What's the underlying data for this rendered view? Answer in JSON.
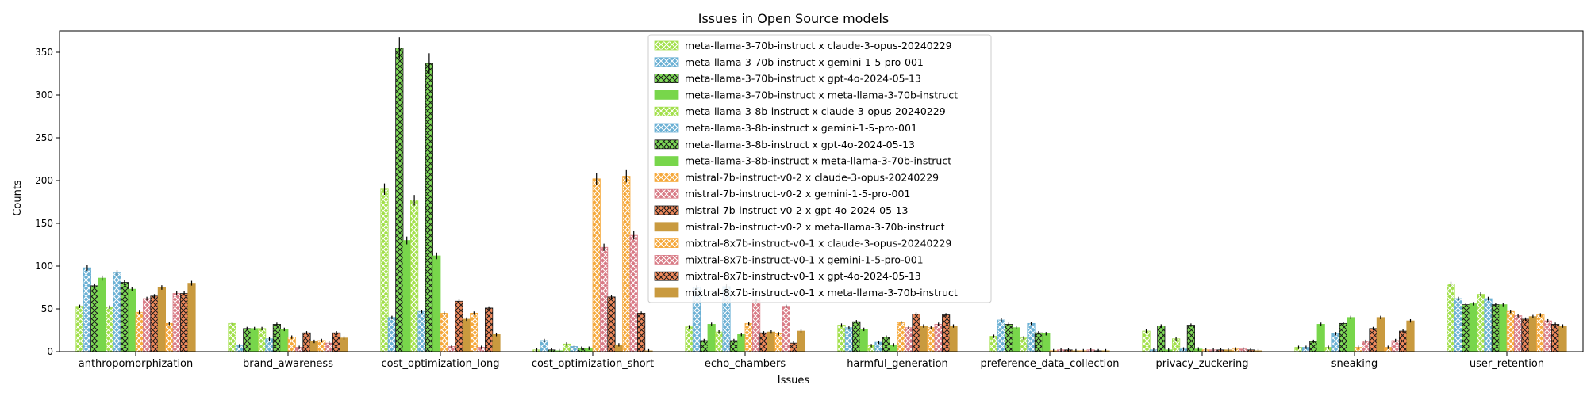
{
  "chart_data": {
    "type": "bar",
    "title": "Issues in Open Source models",
    "xlabel": "Issues",
    "ylabel": "Counts",
    "ylim": [
      0,
      375
    ],
    "yticks": [
      0,
      50,
      100,
      150,
      200,
      250,
      300,
      350
    ],
    "legend_position": "top-center",
    "categories": [
      "anthropomorphization",
      "brand_awareness",
      "cost_optimization_long",
      "cost_optimization_short",
      "echo_chambers",
      "harmful_generation",
      "preference_data_collection",
      "privacy_zuckering",
      "sneaking",
      "user_retention"
    ],
    "series": [
      {
        "name": "meta-llama-3-70b-instruct x claude-3-opus-20240229",
        "color": "#a2e04a",
        "hatch": "x",
        "values": [
          53,
          33,
          190,
          2,
          29,
          31,
          18,
          24,
          5,
          79
        ]
      },
      {
        "name": "meta-llama-3-70b-instruct x gemini-1-5-pro-001",
        "color": "#6ab0d4",
        "hatch": "x",
        "values": [
          98,
          7,
          40,
          13,
          75,
          28,
          37,
          2,
          5,
          62
        ]
      },
      {
        "name": "meta-llama-3-70b-instruct x gpt-4o-2024-05-13",
        "color": "#7ed957",
        "hatch": "xx",
        "values": [
          77,
          27,
          355,
          2,
          13,
          35,
          32,
          30,
          12,
          55
        ]
      },
      {
        "name": "meta-llama-3-70b-instruct x meta-llama-3-70b-instruct",
        "color": "#78d64b",
        "hatch": "",
        "values": [
          86,
          27,
          130,
          1,
          32,
          26,
          28,
          2,
          32,
          56
        ]
      },
      {
        "name": "meta-llama-3-8b-instruct x claude-3-opus-20240229",
        "color": "#a2e04a",
        "hatch": "x",
        "values": [
          52,
          27,
          177,
          9,
          23,
          7,
          16,
          15,
          5,
          67
        ]
      },
      {
        "name": "meta-llama-3-8b-instruct x gemini-1-5-pro-001",
        "color": "#6ab0d4",
        "hatch": "x",
        "values": [
          92,
          15,
          47,
          6,
          76,
          11,
          33,
          3,
          21,
          62
        ]
      },
      {
        "name": "meta-llama-3-8b-instruct x gpt-4o-2024-05-13",
        "color": "#7ed957",
        "hatch": "xx",
        "values": [
          81,
          32,
          337,
          4,
          13,
          17,
          22,
          31,
          33,
          55
        ]
      },
      {
        "name": "meta-llama-3-8b-instruct x meta-llama-3-70b-instruct",
        "color": "#78d64b",
        "hatch": "",
        "values": [
          73,
          26,
          112,
          4,
          20,
          8,
          21,
          3,
          40,
          55
        ]
      },
      {
        "name": "mistral-7b-instruct-v0-2 x claude-3-opus-20240229",
        "color": "#f5a83a",
        "hatch": "x",
        "values": [
          46,
          17,
          45,
          202,
          33,
          34,
          1,
          2,
          5,
          47
        ]
      },
      {
        "name": "mistral-7b-instruct-v0-2 x gemini-1-5-pro-001",
        "color": "#d87a85",
        "hatch": "x",
        "values": [
          62,
          5,
          6,
          122,
          60,
          28,
          2,
          2,
          12,
          42
        ]
      },
      {
        "name": "mistral-7b-instruct-v0-2 x gpt-4o-2024-05-13",
        "color": "#f08a5d",
        "hatch": "xx",
        "values": [
          65,
          22,
          59,
          64,
          22,
          44,
          2,
          2,
          27,
          38
        ]
      },
      {
        "name": "mistral-7b-instruct-v0-2 x meta-llama-3-70b-instruct",
        "color": "#c99a3f",
        "hatch": "",
        "values": [
          75,
          12,
          38,
          8,
          23,
          30,
          1,
          2,
          40,
          41
        ]
      },
      {
        "name": "mixtral-8x7b-instruct-v0-1 x claude-3-opus-20240229",
        "color": "#f5a83a",
        "hatch": "x",
        "values": [
          33,
          13,
          45,
          205,
          21,
          28,
          1,
          3,
          5,
          43
        ]
      },
      {
        "name": "mixtral-8x7b-instruct-v0-1 x gemini-1-5-pro-001",
        "color": "#d87a85",
        "hatch": "x",
        "values": [
          68,
          10,
          5,
          136,
          53,
          32,
          2,
          3,
          13,
          36
        ]
      },
      {
        "name": "mixtral-8x7b-instruct-v0-1 x gpt-4o-2024-05-13",
        "color": "#f08a5d",
        "hatch": "xx",
        "values": [
          68,
          22,
          51,
          45,
          10,
          43,
          1,
          2,
          24,
          32
        ]
      },
      {
        "name": "mixtral-8x7b-instruct-v0-1 x meta-llama-3-70b-instruct",
        "color": "#c99a3f",
        "hatch": "",
        "values": [
          80,
          16,
          20,
          1,
          24,
          30,
          1,
          1,
          36,
          30
        ]
      }
    ]
  }
}
